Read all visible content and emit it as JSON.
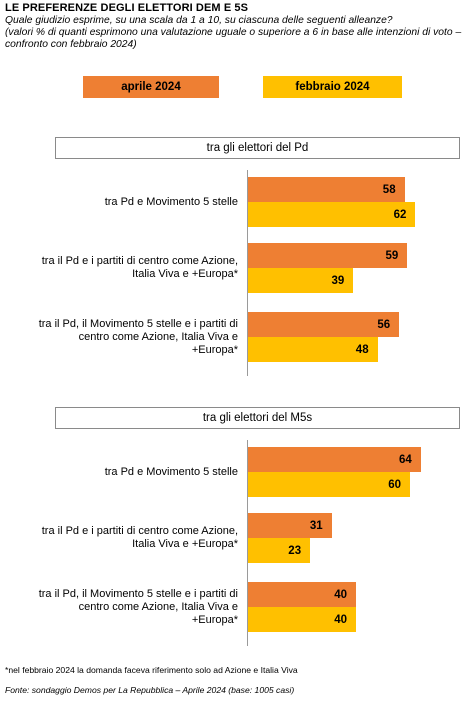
{
  "header": {
    "title": "LE PREFERENZE DEGLI ELETTORI DEM E 5S",
    "question": "Quale giudizio esprime, su una scala da 1 a 10, su ciascuna delle seguenti alleanze?",
    "note": "(valori % di quanti esprimono una valutazione uguale o superiore a 6 in base alle intenzioni di voto – confronto con febbraio 2024)"
  },
  "footer": {
    "footnote": "*nel febbraio 2024 la domanda faceva riferimento solo ad Azione e Italia Viva",
    "source": "Fonte: sondaggio Demos per La Repubblica – Aprile 2024 (base: 1005 casi)"
  },
  "colors": {
    "aprile": "#EE7F33",
    "febbraio": "#FFC000"
  },
  "chart_data": {
    "type": "bar",
    "orientation": "horizontal",
    "legend": [
      "aprile 2024",
      "febbraio 2024"
    ],
    "legend_position": "top",
    "categories": [
      "tra Pd e Movimento 5 stelle",
      "tra il Pd e i partiti di centro come Azione, Italia Viva e +Europa*",
      "tra il Pd, il Movimento 5 stelle e i partiti di centro come Azione, Italia Viva e +Europa*"
    ],
    "panels": [
      {
        "title": "tra gli elettori del Pd",
        "series": [
          {
            "name": "aprile 2024",
            "values": [
              58,
              59,
              56
            ]
          },
          {
            "name": "febbraio 2024",
            "values": [
              62,
              39,
              48
            ]
          }
        ]
      },
      {
        "title": "tra gli elettori del M5s",
        "series": [
          {
            "name": "aprile 2024",
            "values": [
              64,
              31,
              40
            ]
          },
          {
            "name": "febbraio 2024",
            "values": [
              60,
              23,
              40
            ]
          }
        ]
      }
    ],
    "xlim": [
      0,
      65
    ],
    "grid": false
  }
}
